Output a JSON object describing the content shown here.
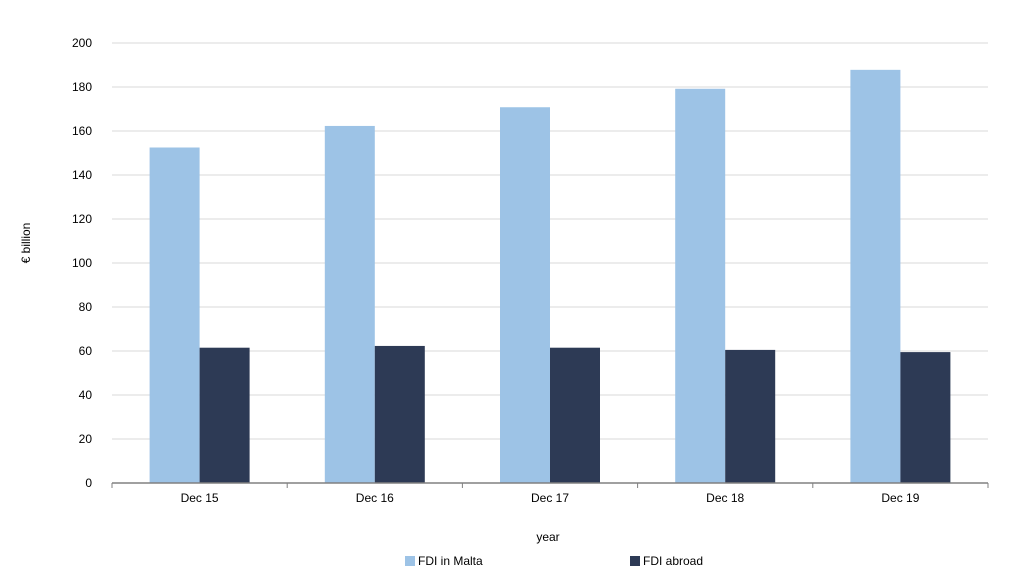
{
  "chart_data": {
    "type": "bar",
    "title": "",
    "xlabel": "year",
    "ylabel": "€ billion",
    "ylim": [
      0,
      200
    ],
    "yticks": [
      0,
      20,
      40,
      60,
      80,
      100,
      120,
      140,
      160,
      180,
      200
    ],
    "grid": true,
    "legend_position": "bottom",
    "categories": [
      "Dec 15",
      "Dec 16",
      "Dec 17",
      "Dec 18",
      "Dec 19"
    ],
    "series": [
      {
        "name": "FDI in Malta",
        "color": "#9DC3E6",
        "values": [
          152.5,
          162.3,
          170.8,
          179.2,
          187.8
        ]
      },
      {
        "name": "FDI abroad",
        "color": "#2D3A55",
        "values": [
          61.5,
          62.3,
          61.5,
          60.5,
          59.5
        ]
      }
    ]
  }
}
